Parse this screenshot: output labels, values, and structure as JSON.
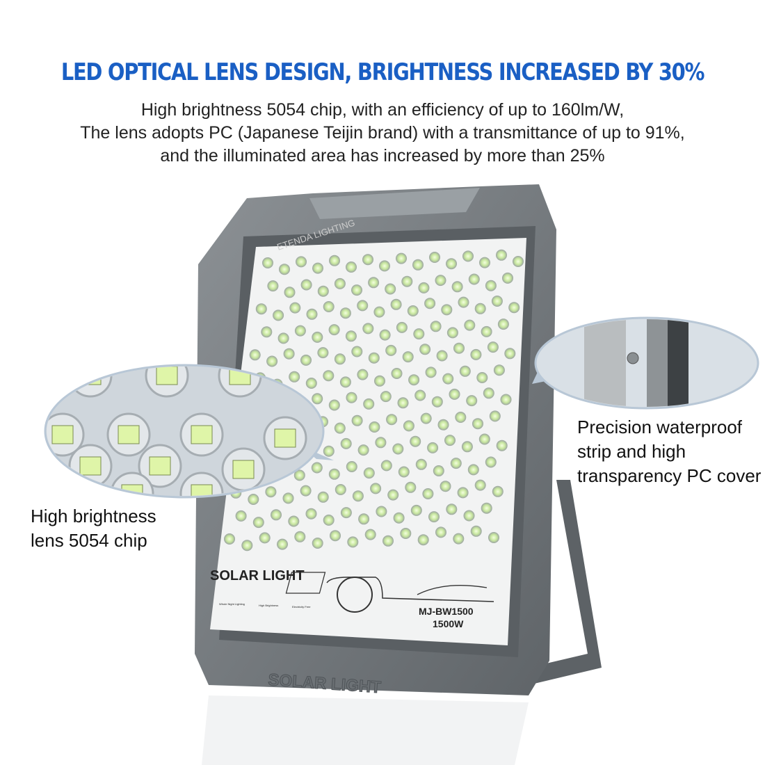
{
  "headline": "LED OPTICAL LENS DESIGN, BRIGHTNESS INCREASED BY 30%",
  "subtext": [
    "High brightness 5054 chip, with an efficiency of up to 160lm/W,",
    "The lens adopts PC (Japanese Teijin brand) with a transmittance of up to 91%,",
    "and the illuminated area has increased by more than 25%"
  ],
  "callouts": {
    "left": [
      "High brightness",
      "lens 5054 chip"
    ],
    "right": [
      "Precision waterproof",
      "strip and high",
      "transparency PC cover"
    ]
  },
  "product_label": {
    "title": "SOLAR LIGHT",
    "model": "MJ-BW1500",
    "power": "1500W",
    "features": [
      "Whole Night Lighting",
      "High Brightness",
      "Electricity Free"
    ],
    "housing_emboss": "SOLAR LIGHT"
  },
  "watermark": "ETENDA LIGHTING",
  "colors": {
    "headline": "#1a5fc4",
    "housing": "#7b8084",
    "panel": "#f2f3f3",
    "led": "#e8f6c8"
  }
}
